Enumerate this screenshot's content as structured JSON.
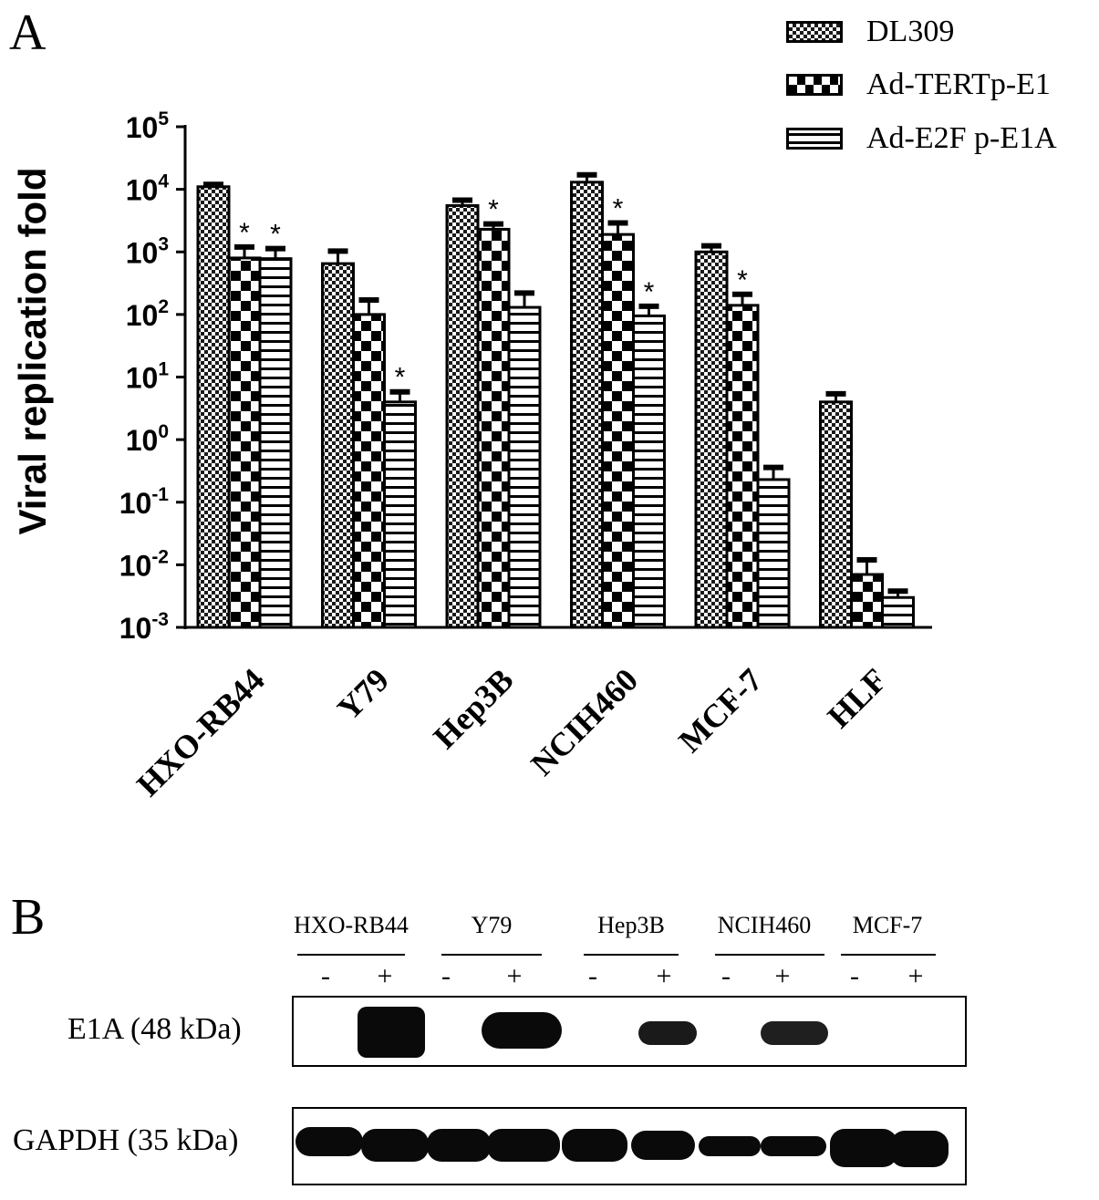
{
  "panel_a_letter": "A",
  "panel_b_letter": "B",
  "chart_data": {
    "type": "bar",
    "categories": [
      "HXO-RB44",
      "Y79",
      "Hep3B",
      "NCIH460",
      "MCF-7",
      "HLF"
    ],
    "series": [
      {
        "name": "DL309",
        "values": [
          11000,
          650,
          5500,
          13000,
          1000,
          4
        ],
        "errors": [
          1000,
          380,
          1200,
          4000,
          250,
          1.4
        ],
        "significant": [
          false,
          false,
          false,
          false,
          false,
          false
        ]
      },
      {
        "name": "Ad-TERTp-E1",
        "values": [
          800,
          100,
          2300,
          1900,
          140,
          0.007
        ],
        "errors": [
          400,
          70,
          500,
          1000,
          70,
          0.005
        ],
        "significant": [
          true,
          false,
          true,
          true,
          true,
          false
        ]
      },
      {
        "name": "Ad-E2F p-E1A",
        "values": [
          780,
          4,
          130,
          95,
          0.23,
          0.003
        ],
        "errors": [
          350,
          1.8,
          90,
          40,
          0.13,
          0.0008
        ],
        "significant": [
          true,
          true,
          false,
          true,
          false,
          false
        ]
      }
    ],
    "ylabel": "Viral replication fold",
    "y_scale": "log",
    "ylim": [
      0.001,
      100000
    ],
    "yticks": [
      {
        "base": "10",
        "exp": "-3"
      },
      {
        "base": "10",
        "exp": "-2"
      },
      {
        "base": "10",
        "exp": "-1"
      },
      {
        "base": "10",
        "exp": "0"
      },
      {
        "base": "10",
        "exp": "1"
      },
      {
        "base": "10",
        "exp": "2"
      },
      {
        "base": "10",
        "exp": "3"
      },
      {
        "base": "10",
        "exp": "4"
      },
      {
        "base": "10",
        "exp": "5"
      }
    ],
    "significance_marker": "*",
    "legend_position": "top-right",
    "grid": false
  },
  "blot": {
    "lanes": [
      "HXO-RB44",
      "Y79",
      "Hep3B",
      "NCIH460",
      "MCF-7"
    ],
    "signs": [
      "-",
      "+"
    ],
    "rows": [
      {
        "label": "E1A (48 kDa)"
      },
      {
        "label": "GAPDH (35 kDa)"
      }
    ]
  }
}
